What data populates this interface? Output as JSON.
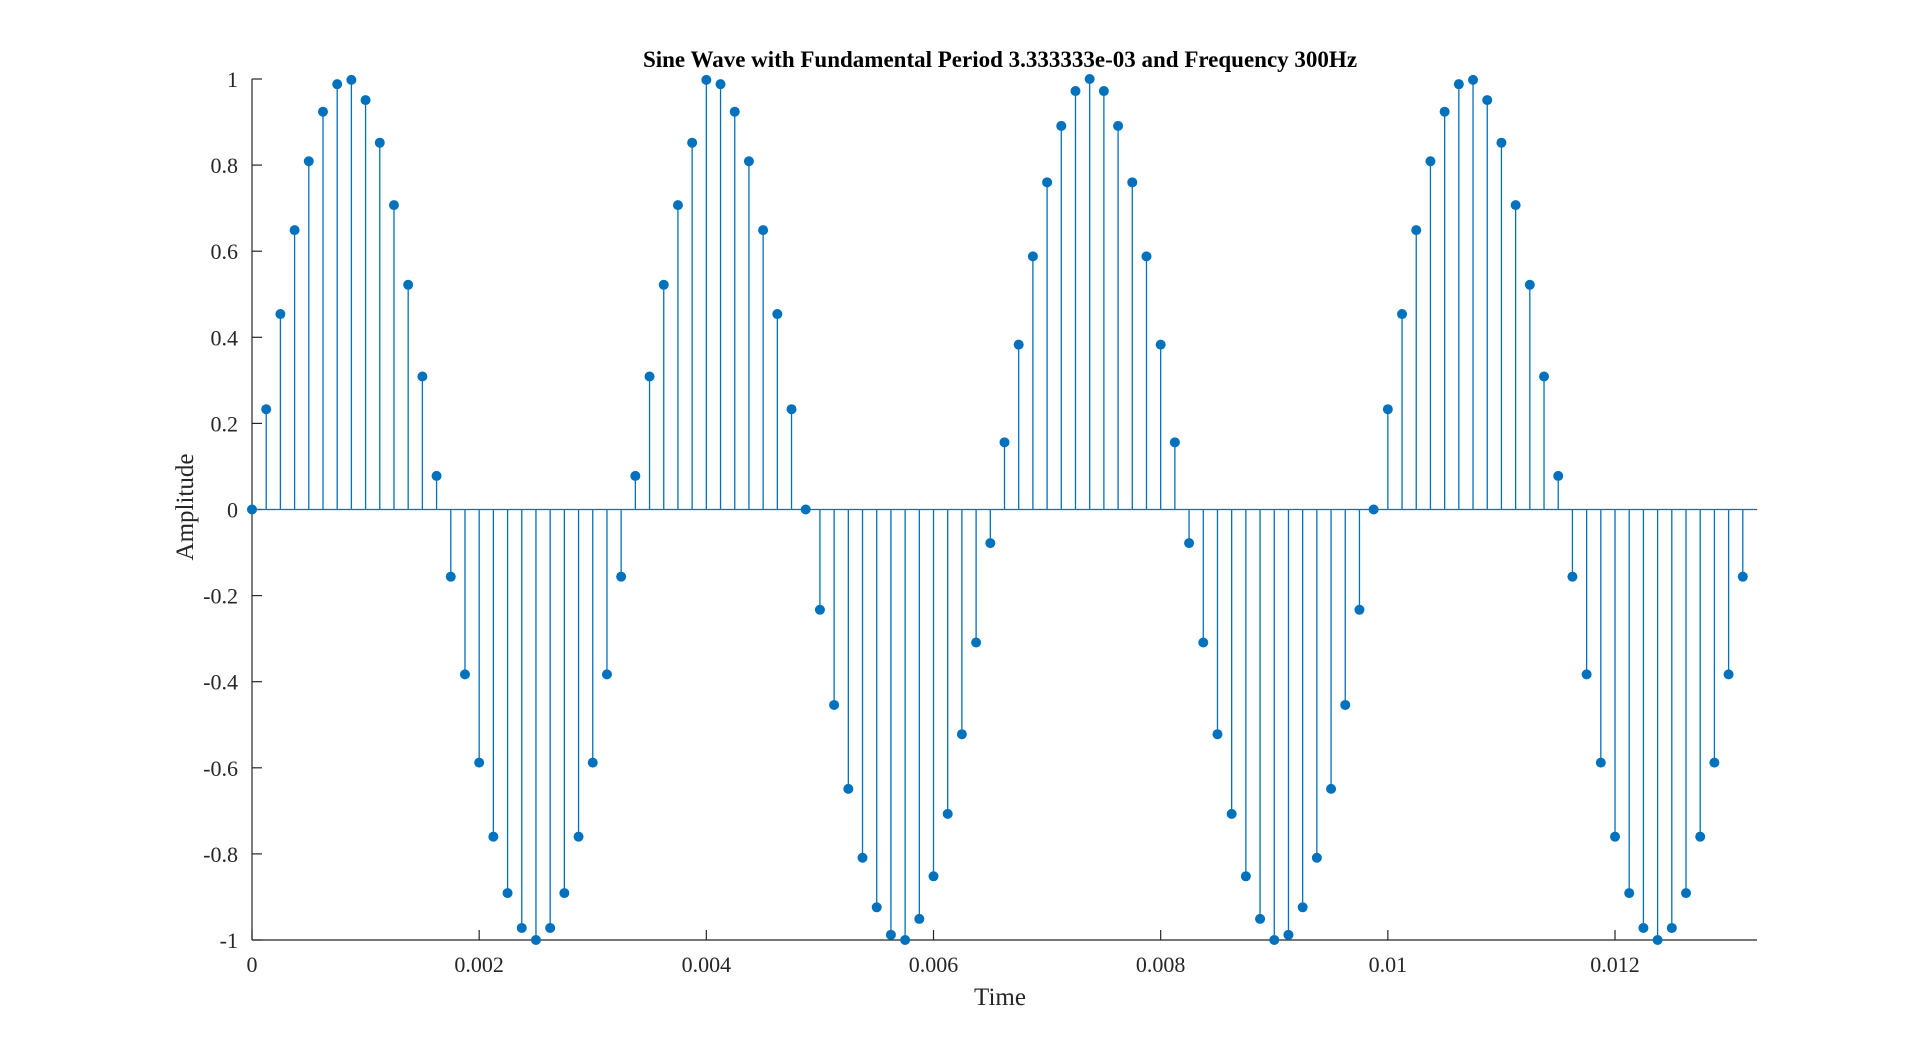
{
  "chart_data": {
    "type": "stem",
    "title": "Sine Wave with Fundamental Period 3.333333e-03 and Frequency 300Hz",
    "xlabel": "Time",
    "ylabel": "Amplitude",
    "xlim": [
      0,
      0.01325
    ],
    "ylim": [
      -1,
      1
    ],
    "xticks": [
      0,
      0.002,
      0.004,
      0.006,
      0.008,
      0.01,
      0.012
    ],
    "xtick_labels": [
      "0",
      "0.002",
      "0.004",
      "0.006",
      "0.008",
      "0.01",
      "0.012"
    ],
    "yticks": [
      -1,
      -0.8,
      -0.6,
      -0.4,
      -0.2,
      0,
      0.2,
      0.4,
      0.6,
      0.8,
      1
    ],
    "ytick_labels": [
      "-1",
      "-0.8",
      "-0.6",
      "-0.4",
      "-0.2",
      "0",
      "0.2",
      "0.4",
      "0.6",
      "0.8",
      "1"
    ],
    "grid": false,
    "color": "#0072BD",
    "series": [
      {
        "x": [
          0,
          0.000125,
          0.00025,
          0.000375,
          0.0005,
          0.000625,
          0.00075,
          0.000875,
          0.001,
          0.001125,
          0.00125,
          0.001375,
          0.0015,
          0.001625,
          0.00175,
          0.001875,
          0.002,
          0.002125,
          0.00225,
          0.002375,
          0.0025,
          0.002625,
          0.00275,
          0.002875,
          0.003,
          0.003125,
          0.00325,
          0.003375,
          0.0035,
          0.003625,
          0.00375,
          0.003875,
          0.004,
          0.004125,
          0.00425,
          0.004375,
          0.0045,
          0.004625,
          0.00475,
          0.004875,
          0.005,
          0.005125,
          0.00525,
          0.005375,
          0.0055,
          0.005625,
          0.00575,
          0.005875,
          0.006,
          0.006125,
          0.00625,
          0.006375,
          0.0065,
          0.006625,
          0.00675,
          0.006875,
          0.007,
          0.007125,
          0.00725,
          0.007375,
          0.0075,
          0.007625,
          0.00775,
          0.007875,
          0.008,
          0.008125,
          0.00825,
          0.008375,
          0.0085,
          0.008625,
          0.00875,
          0.008875,
          0.009,
          0.009125,
          0.00925,
          0.009375,
          0.0095,
          0.009625,
          0.00975,
          0.009875,
          0.01,
          0.010125,
          0.01025,
          0.010375,
          0.0105,
          0.010625,
          0.01075,
          0.010875,
          0.011,
          0.011125,
          0.01125,
          0.011375,
          0.0115,
          0.011625,
          0.01175,
          0.011875,
          0.012,
          0.012125,
          0.01225,
          0.012375,
          0.0125,
          0.012625,
          0.01275,
          0.012875,
          0.013,
          0.013125
        ],
        "y": [
          0,
          0.233,
          0.454,
          0.649,
          0.809,
          0.924,
          0.988,
          0.998,
          0.951,
          0.852,
          0.707,
          0.522,
          0.309,
          0.078,
          -0.156,
          -0.383,
          -0.588,
          -0.76,
          -0.891,
          -0.972,
          -1.0,
          -0.972,
          -0.891,
          -0.76,
          -0.588,
          -0.383,
          -0.156,
          0.078,
          0.309,
          0.522,
          0.707,
          0.852,
          0.998,
          0.988,
          0.924,
          0.809,
          0.649,
          0.454,
          0.233,
          0,
          -0.233,
          -0.454,
          -0.649,
          -0.809,
          -0.924,
          -0.988,
          -1.0,
          -0.951,
          -0.852,
          -0.707,
          -0.522,
          -0.309,
          -0.078,
          0.156,
          0.383,
          0.588,
          0.76,
          0.891,
          0.972,
          1.0,
          0.972,
          0.891,
          0.76,
          0.588,
          0.383,
          0.156,
          -0.078,
          -0.309,
          -0.522,
          -0.707,
          -0.852,
          -0.951,
          -1.0,
          -0.988,
          -0.924,
          -0.809,
          -0.649,
          -0.454,
          -0.233,
          0,
          0.233,
          0.454,
          0.649,
          0.809,
          0.924,
          0.988,
          0.998,
          0.951,
          0.852,
          0.707,
          0.522,
          0.309,
          0.078,
          -0.156,
          -0.383,
          -0.588,
          -0.76,
          -0.891,
          -0.972,
          -1.0,
          -0.972,
          -0.891,
          -0.76,
          -0.588,
          -0.383,
          -0.156
        ]
      }
    ]
  }
}
